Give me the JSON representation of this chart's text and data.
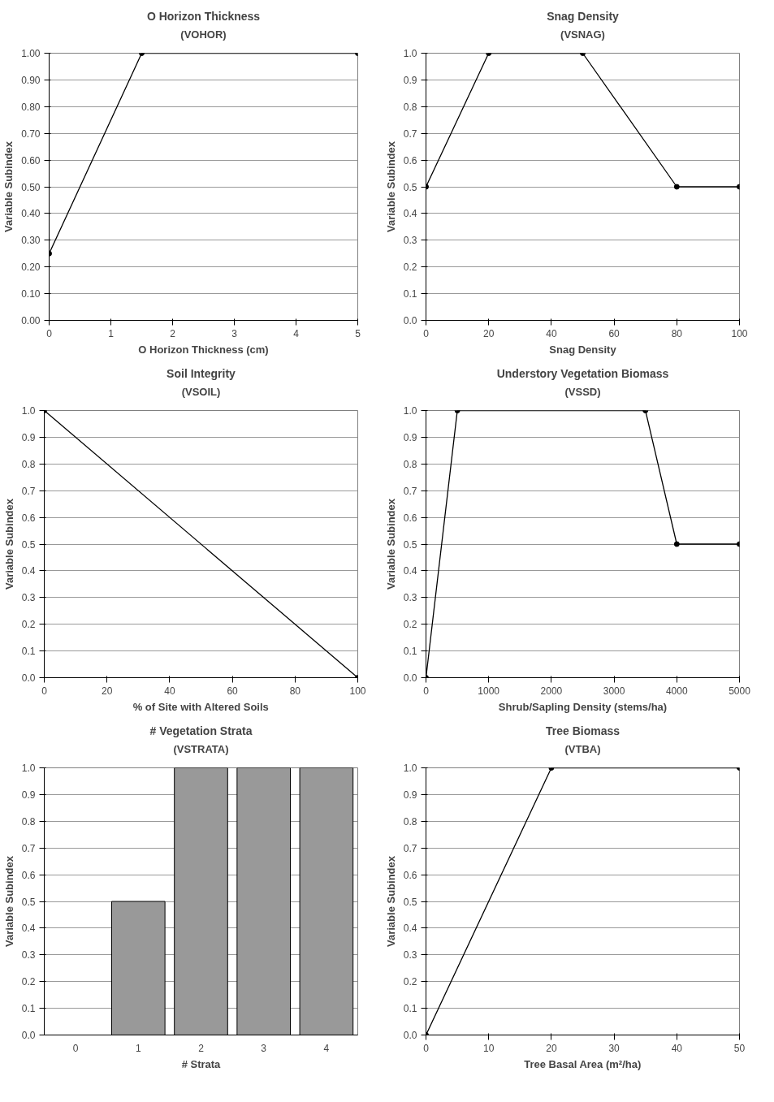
{
  "chart_data": [
    {
      "type": "line",
      "title": "O Horizon Thickness",
      "subtitle": "(VOHOR)",
      "xlabel": "O Horizon Thickness (cm)",
      "ylabel": "Variable Subindex",
      "x": [
        0,
        1.5,
        5
      ],
      "values": [
        0.25,
        1,
        1
      ],
      "color": "#000000",
      "marker": "circle",
      "line_style": "solid",
      "grid": "y",
      "xlim": [
        0,
        5
      ],
      "xticks": [
        0,
        1,
        2,
        3,
        4,
        5
      ],
      "ylim": [
        0,
        1
      ],
      "yticks": [
        {
          "value": 0,
          "label": "0.00"
        },
        {
          "value": 0.1,
          "label": "0.10"
        },
        {
          "value": 0.2,
          "label": "0.20"
        },
        {
          "value": 0.3,
          "label": "0.30"
        },
        {
          "value": 0.4,
          "label": "0.40"
        },
        {
          "value": 0.5,
          "label": "0.50"
        },
        {
          "value": 0.6,
          "label": "0.60"
        },
        {
          "value": 0.7,
          "label": "0.70"
        },
        {
          "value": 0.8,
          "label": "0.80"
        },
        {
          "value": 0.9,
          "label": "0.90"
        },
        {
          "value": 1,
          "label": "1.00"
        }
      ]
    },
    {
      "type": "line",
      "title": "Snag Density",
      "subtitle": "(VSNAG)",
      "xlabel": "Snag Density",
      "ylabel": "Variable Subindex",
      "x": [
        0,
        20,
        50,
        80,
        100
      ],
      "values": [
        0.5,
        1,
        1,
        0.5,
        0.5
      ],
      "color": "#000000",
      "marker": "circle",
      "line_style": "solid",
      "grid": "y",
      "xlim": [
        0,
        100
      ],
      "xticks": [
        0,
        20,
        40,
        60,
        80,
        100
      ],
      "ylim": [
        0,
        1
      ],
      "yticks": [
        {
          "value": 0,
          "label": "0.0"
        },
        {
          "value": 0.1,
          "label": "0.1"
        },
        {
          "value": 0.2,
          "label": "0.2"
        },
        {
          "value": 0.3,
          "label": "0.3"
        },
        {
          "value": 0.4,
          "label": "0.4"
        },
        {
          "value": 0.5,
          "label": "0.5"
        },
        {
          "value": 0.6,
          "label": "0.6"
        },
        {
          "value": 0.7,
          "label": "0.7"
        },
        {
          "value": 0.8,
          "label": "0.8"
        },
        {
          "value": 0.9,
          "label": "0.9"
        },
        {
          "value": 1,
          "label": "1.0"
        }
      ]
    },
    {
      "type": "line",
      "title": "Soil Integrity",
      "subtitle": "(VSOIL)",
      "xlabel": "% of Site with Altered Soils",
      "ylabel": "Variable Subindex",
      "x": [
        0,
        100
      ],
      "values": [
        1,
        0
      ],
      "color": "#000000",
      "marker": "circle",
      "line_style": "solid",
      "grid": "y",
      "xlim": [
        0,
        100
      ],
      "xticks": [
        0,
        20,
        40,
        60,
        80,
        100
      ],
      "ylim": [
        0,
        1
      ],
      "yticks": [
        {
          "value": 0,
          "label": "0.0"
        },
        {
          "value": 0.1,
          "label": "0.1"
        },
        {
          "value": 0.2,
          "label": "0.2"
        },
        {
          "value": 0.3,
          "label": "0.3"
        },
        {
          "value": 0.4,
          "label": "0.4"
        },
        {
          "value": 0.5,
          "label": "0.5"
        },
        {
          "value": 0.6,
          "label": "0.6"
        },
        {
          "value": 0.7,
          "label": "0.7"
        },
        {
          "value": 0.8,
          "label": "0.8"
        },
        {
          "value": 0.9,
          "label": "0.9"
        },
        {
          "value": 1,
          "label": "1.0"
        }
      ]
    },
    {
      "type": "line",
      "title": "Understory Vegetation Biomass",
      "subtitle": "(VSSD)",
      "xlabel": "Shrub/Sapling Density (stems/ha)",
      "ylabel": "Variable Subindex",
      "x": [
        0,
        500,
        3500,
        4000,
        5000
      ],
      "values": [
        0,
        1,
        1,
        0.5,
        0.5
      ],
      "color": "#000000",
      "marker": "circle",
      "line_style": "solid",
      "grid": "y",
      "xlim": [
        0,
        5000
      ],
      "xticks": [
        0,
        1000,
        2000,
        3000,
        4000,
        5000
      ],
      "ylim": [
        0,
        1
      ],
      "yticks": [
        {
          "value": 0,
          "label": "0.0"
        },
        {
          "value": 0.1,
          "label": "0.1"
        },
        {
          "value": 0.2,
          "label": "0.2"
        },
        {
          "value": 0.3,
          "label": "0.3"
        },
        {
          "value": 0.4,
          "label": "0.4"
        },
        {
          "value": 0.5,
          "label": "0.5"
        },
        {
          "value": 0.6,
          "label": "0.6"
        },
        {
          "value": 0.7,
          "label": "0.7"
        },
        {
          "value": 0.8,
          "label": "0.8"
        },
        {
          "value": 0.9,
          "label": "0.9"
        },
        {
          "value": 1,
          "label": "1.0"
        }
      ]
    },
    {
      "type": "bar",
      "title": "# Vegetation Strata",
      "subtitle": "(VSTRATA)",
      "xlabel": "# Strata",
      "ylabel": "Variable Subindex",
      "categories": [
        "0",
        "1",
        "2",
        "3",
        "4"
      ],
      "values": [
        0,
        0.5,
        1,
        1,
        1
      ],
      "color": "#999999",
      "grid": "y",
      "ylim": [
        0,
        1
      ],
      "yticks": [
        {
          "value": 0,
          "label": "0.0"
        },
        {
          "value": 0.1,
          "label": "0.1"
        },
        {
          "value": 0.2,
          "label": "0.2"
        },
        {
          "value": 0.3,
          "label": "0.3"
        },
        {
          "value": 0.4,
          "label": "0.4"
        },
        {
          "value": 0.5,
          "label": "0.5"
        },
        {
          "value": 0.6,
          "label": "0.6"
        },
        {
          "value": 0.7,
          "label": "0.7"
        },
        {
          "value": 0.8,
          "label": "0.8"
        },
        {
          "value": 0.9,
          "label": "0.9"
        },
        {
          "value": 1,
          "label": "1.0"
        }
      ]
    },
    {
      "type": "line",
      "title": "Tree Biomass",
      "subtitle": "(VTBA)",
      "xlabel": "Tree Basal Area (m²/ha)",
      "ylabel": "Variable Subindex",
      "x": [
        0,
        20,
        50
      ],
      "values": [
        0,
        1,
        1
      ],
      "color": "#000000",
      "marker": "circle",
      "line_style": "solid",
      "grid": "y",
      "xlim": [
        0,
        50
      ],
      "xticks": [
        0,
        10,
        20,
        30,
        40,
        50
      ],
      "ylim": [
        0,
        1
      ],
      "yticks": [
        {
          "value": 0,
          "label": "0.0"
        },
        {
          "value": 0.1,
          "label": "0.1"
        },
        {
          "value": 0.2,
          "label": "0.2"
        },
        {
          "value": 0.3,
          "label": "0.3"
        },
        {
          "value": 0.4,
          "label": "0.4"
        },
        {
          "value": 0.5,
          "label": "0.5"
        },
        {
          "value": 0.6,
          "label": "0.6"
        },
        {
          "value": 0.7,
          "label": "0.7"
        },
        {
          "value": 0.8,
          "label": "0.8"
        },
        {
          "value": 0.9,
          "label": "0.9"
        },
        {
          "value": 1,
          "label": "1.0"
        }
      ]
    }
  ]
}
